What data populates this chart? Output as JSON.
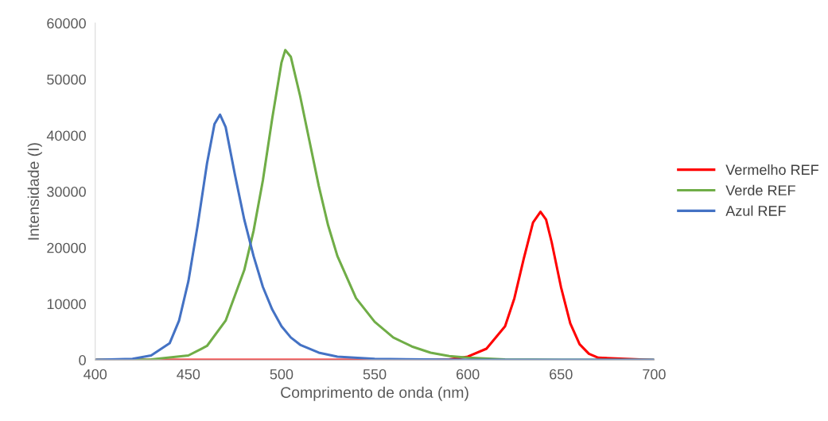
{
  "chart_data": {
    "type": "line",
    "xlabel": "Comprimento de onda (nm)",
    "ylabel": "Intensidade (I)",
    "xlim": [
      400,
      700
    ],
    "xticks": [
      400,
      450,
      500,
      550,
      600,
      650,
      700
    ],
    "ylim": [
      0,
      60000
    ],
    "yticks": [
      0,
      10000,
      20000,
      30000,
      40000,
      50000,
      60000
    ],
    "grid": false,
    "legend": "right",
    "marker": "none",
    "line_style": "solid",
    "series": [
      {
        "name": "Vermelho REF",
        "color": "#ff0000",
        "x": [
          400,
          580,
          590,
          600,
          610,
          620,
          625,
          630,
          635,
          639,
          642,
          645,
          650,
          655,
          660,
          665,
          670,
          700
        ],
        "values": [
          0,
          0,
          100,
          600,
          2000,
          6000,
          11000,
          18000,
          24500,
          26400,
          25000,
          21000,
          13000,
          6500,
          2800,
          1100,
          400,
          0
        ]
      },
      {
        "name": "Verde REF",
        "color": "#70ad47",
        "x": [
          400,
          430,
          450,
          460,
          470,
          480,
          485,
          490,
          495,
          500,
          502,
          505,
          510,
          515,
          520,
          525,
          530,
          540,
          550,
          560,
          570,
          580,
          590,
          600,
          620,
          650,
          700
        ],
        "values": [
          0,
          100,
          800,
          2500,
          7000,
          16000,
          23000,
          32000,
          43000,
          53000,
          55200,
          54000,
          47000,
          39000,
          31000,
          24000,
          18500,
          11000,
          6800,
          4000,
          2400,
          1300,
          700,
          400,
          100,
          0,
          0
        ]
      },
      {
        "name": "Azul REF",
        "color": "#4472c4",
        "x": [
          400,
          420,
          430,
          440,
          445,
          450,
          455,
          460,
          464,
          467,
          470,
          475,
          480,
          485,
          490,
          495,
          500,
          505,
          510,
          520,
          530,
          550,
          600,
          700
        ],
        "values": [
          0,
          200,
          800,
          3000,
          7000,
          14000,
          24000,
          35000,
          42000,
          43700,
          41500,
          33000,
          25000,
          18500,
          13000,
          9000,
          6000,
          4000,
          2700,
          1300,
          600,
          200,
          0,
          0
        ]
      }
    ]
  }
}
